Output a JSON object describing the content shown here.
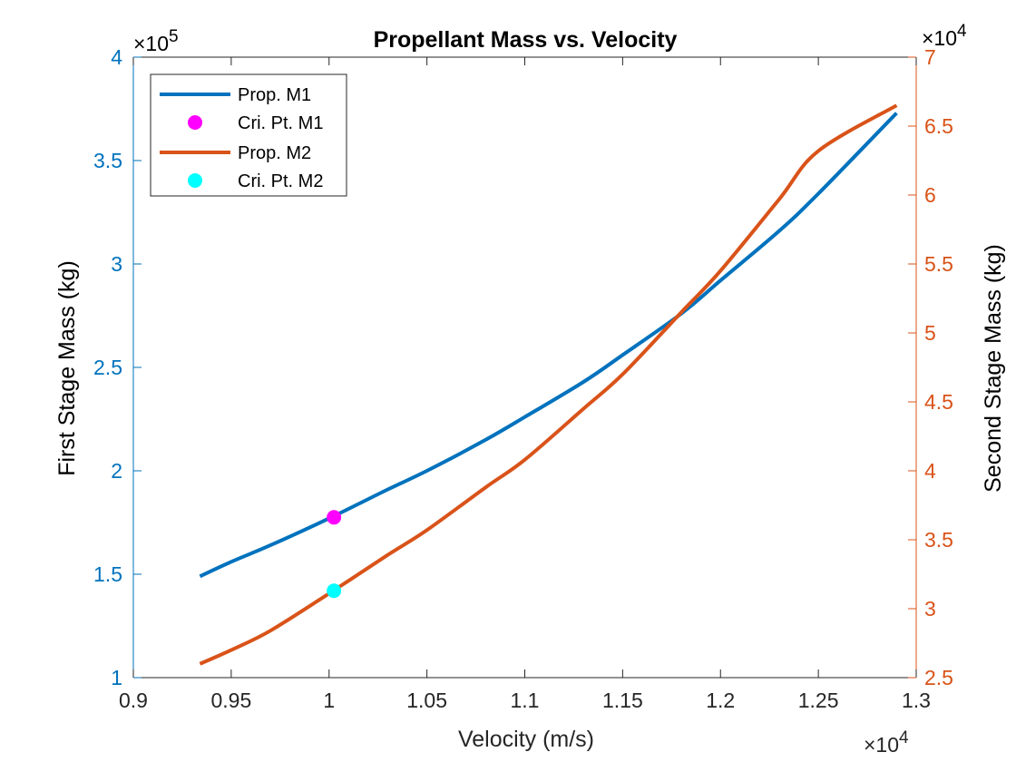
{
  "chart_data": {
    "type": "line",
    "title": "Propellant Mass vs. Velocity",
    "xlabel": "Velocity (m/s)",
    "ylabel_left": "First Stage Mass (kg)",
    "ylabel_right": "Second Stage Mass (kg)",
    "x_multiplier": "×10",
    "x_exponent": "4",
    "y_left_multiplier": "×10",
    "y_left_exponent": "5",
    "y_right_multiplier": "×10",
    "y_right_exponent": "4",
    "xlim": [
      0.9,
      1.3
    ],
    "ylim_left": [
      1,
      4
    ],
    "ylim_right": [
      2.5,
      7
    ],
    "x_ticks": [
      "0.9",
      "0.95",
      "1",
      "1.05",
      "1.1",
      "1.15",
      "1.2",
      "1.25",
      "1.3"
    ],
    "y_left_ticks": [
      "1",
      "1.5",
      "2",
      "2.5",
      "3",
      "3.5",
      "4"
    ],
    "y_right_ticks": [
      "2.5",
      "3",
      "3.5",
      "4",
      "4.5",
      "5",
      "5.5",
      "6",
      "6.5",
      "7"
    ],
    "grid": false,
    "legend_position": "top-left",
    "colors": {
      "left_axis": "#0072BD",
      "right_axis": "#D95319",
      "crit_m1": "#FF00FF",
      "crit_m2": "#00FFFF"
    },
    "series": [
      {
        "name": "Prop. M1",
        "axis": "left",
        "x": [
          0.934,
          0.95,
          0.97,
          1.0,
          1.03,
          1.05,
          1.08,
          1.1,
          1.13,
          1.15,
          1.18,
          1.2,
          1.23,
          1.25,
          1.29
        ],
        "y": [
          1.49,
          1.56,
          1.64,
          1.77,
          1.91,
          2.0,
          2.15,
          2.26,
          2.43,
          2.56,
          2.76,
          2.92,
          3.16,
          3.34,
          3.73
        ]
      },
      {
        "name": "Cri. Pt. M1",
        "axis": "left",
        "marker_only": true,
        "x": [
          1.0025
        ],
        "y": [
          1.775
        ]
      },
      {
        "name": "Prop. M2",
        "axis": "right",
        "x": [
          0.934,
          0.95,
          0.97,
          1.0,
          1.03,
          1.05,
          1.08,
          1.1,
          1.13,
          1.15,
          1.18,
          1.2,
          1.23,
          1.25,
          1.29
        ],
        "y": [
          2.6,
          2.7,
          2.84,
          3.11,
          3.39,
          3.57,
          3.88,
          4.08,
          4.45,
          4.7,
          5.15,
          5.45,
          5.97,
          6.32,
          6.65
        ]
      },
      {
        "name": "Cri. Pt. M2",
        "axis": "right",
        "marker_only": true,
        "x": [
          1.0025
        ],
        "y": [
          3.13
        ]
      }
    ]
  }
}
